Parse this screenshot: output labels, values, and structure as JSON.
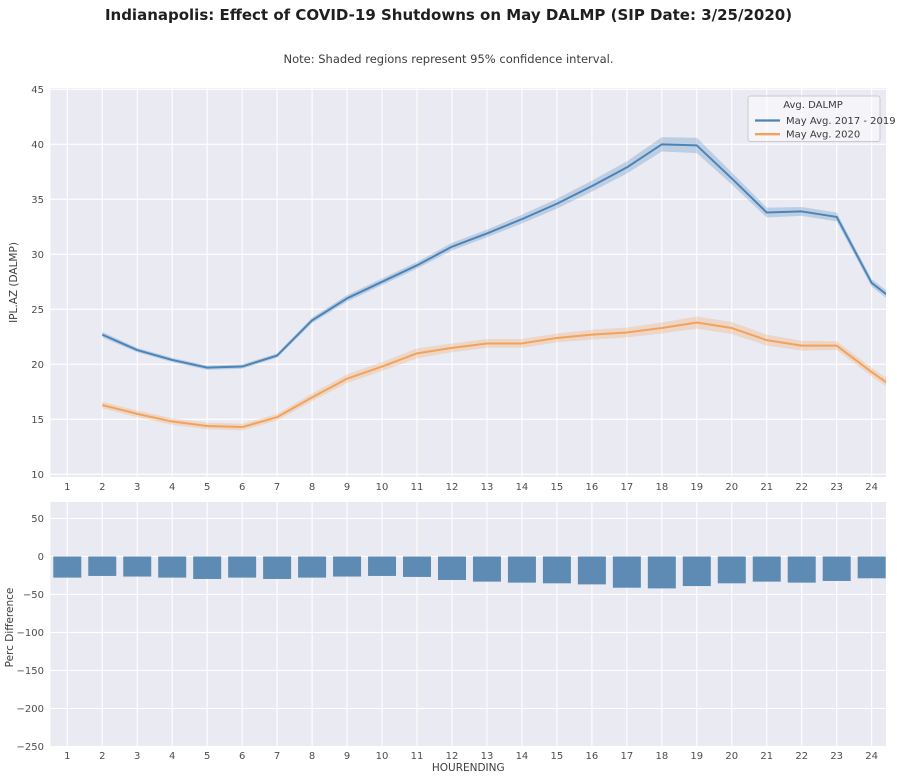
{
  "title": "Indianapolis: Effect of COVID-19 Shutdowns on May DALMP (SIP Date: 3/25/2020)",
  "note": "Note: Shaded regions represent 95% confidence interval.",
  "colors": {
    "axes_background": "#eaeaf2",
    "grid": "#ffffff",
    "series_2017_2019": "#4a84b8",
    "series_2020": "#f4a259",
    "bars": "#5d8bb3",
    "title_text": "#1f1f1f",
    "tick_text": "#4d4d4d"
  },
  "chart_data": [
    {
      "type": "line",
      "ylabel": "IPL.AZ (DALMP)",
      "xticks": [
        1,
        2,
        3,
        4,
        5,
        6,
        7,
        8,
        9,
        10,
        11,
        12,
        13,
        14,
        15,
        16,
        17,
        18,
        19,
        20,
        21,
        22,
        23,
        24
      ],
      "yticks": [
        10,
        15,
        20,
        25,
        30,
        35,
        40,
        45
      ],
      "xlim": [
        0.52,
        24.41
      ],
      "ylim": [
        9.76,
        45.12
      ],
      "grid": true,
      "legend": {
        "title": "Avg. DALMP",
        "position": "upper right"
      },
      "x": [
        2,
        3,
        4,
        5,
        6,
        7,
        8,
        9,
        10,
        11,
        12,
        13,
        14,
        15,
        16,
        17,
        18,
        19,
        20,
        21,
        22,
        23,
        24,
        24.45
      ],
      "series": [
        {
          "name": "May Avg. 2017 - 2019",
          "values": [
            22.7,
            21.3,
            20.4,
            19.7,
            19.8,
            20.8,
            24.0,
            26.0,
            27.5,
            29.0,
            30.7,
            31.9,
            33.2,
            34.6,
            36.2,
            37.9,
            40.0,
            39.9,
            36.9,
            33.8,
            33.9,
            33.4,
            27.4,
            26.3
          ],
          "ci_halfwidth": [
            0.25,
            0.2,
            0.2,
            0.2,
            0.2,
            0.2,
            0.25,
            0.3,
            0.3,
            0.3,
            0.35,
            0.35,
            0.4,
            0.45,
            0.5,
            0.55,
            0.65,
            0.7,
            0.55,
            0.45,
            0.4,
            0.4,
            0.35,
            0.35
          ]
        },
        {
          "name": "May Avg. 2020",
          "values": [
            16.3,
            15.5,
            14.8,
            14.4,
            14.3,
            15.2,
            17.0,
            18.7,
            19.8,
            21.0,
            21.5,
            21.9,
            21.9,
            22.4,
            22.7,
            22.9,
            23.3,
            23.8,
            23.3,
            22.2,
            21.7,
            21.7,
            19.3,
            18.3
          ],
          "ci_halfwidth": [
            0.3,
            0.3,
            0.3,
            0.3,
            0.3,
            0.3,
            0.35,
            0.4,
            0.4,
            0.45,
            0.4,
            0.4,
            0.4,
            0.4,
            0.45,
            0.45,
            0.5,
            0.55,
            0.55,
            0.5,
            0.45,
            0.4,
            0.4,
            0.4
          ]
        }
      ]
    },
    {
      "type": "bar",
      "xlabel": "HOURENDING",
      "ylabel": "Perc Difference",
      "categories": [
        1,
        2,
        3,
        4,
        5,
        6,
        7,
        8,
        9,
        10,
        11,
        12,
        13,
        14,
        15,
        16,
        17,
        18,
        19,
        20,
        21,
        22,
        23,
        24
      ],
      "values": [
        -27.8,
        -25.6,
        -26.4,
        -27.8,
        -29.6,
        -27.8,
        -29.6,
        -27.8,
        -26.4,
        -25.6,
        -26.9,
        -30.9,
        -33.1,
        -34.4,
        -35.3,
        -36.7,
        -41.1,
        -42.0,
        -38.9,
        -35.3,
        -33.1,
        -34.4,
        -32.2,
        -28.7
      ],
      "yticks": [
        50,
        0,
        -50,
        -100,
        -150,
        -200,
        -250
      ],
      "xlim": [
        0.52,
        24.41
      ],
      "ylim": [
        -250.7,
        71.7
      ],
      "grid": true
    }
  ]
}
